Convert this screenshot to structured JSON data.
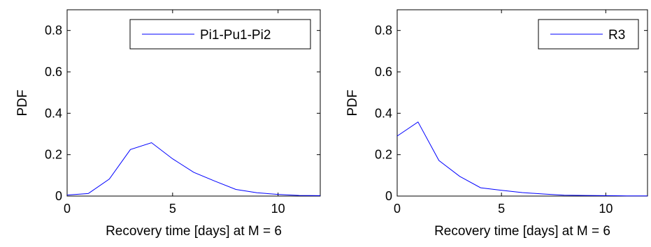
{
  "chart_data": [
    {
      "type": "line",
      "xlabel": "Recovery time [days] at M = 6",
      "ylabel": "PDF",
      "xlim": [
        0,
        12
      ],
      "ylim": [
        0,
        0.9
      ],
      "xticks": [
        0,
        5,
        10
      ],
      "yticks": [
        0,
        0.2,
        0.4,
        0.6,
        0.8
      ],
      "ytick_labels": [
        "0",
        "0.2",
        "0.4",
        "0.6",
        "0.8"
      ],
      "grid": false,
      "legend_position": "top-right",
      "series": [
        {
          "name": "Pi1-Pu1-Pi2",
          "color": "#0000ff",
          "x": [
            0,
            1,
            2,
            3,
            4,
            5,
            6,
            7,
            8,
            9,
            10,
            11,
            12
          ],
          "y": [
            0.005,
            0.012,
            0.082,
            0.225,
            0.258,
            0.18,
            0.115,
            0.072,
            0.032,
            0.016,
            0.008,
            0.003,
            0.002
          ]
        }
      ]
    },
    {
      "type": "line",
      "xlabel": "Recovery time [days] at M = 6",
      "ylabel": "PDF",
      "xlim": [
        0,
        12
      ],
      "ylim": [
        0,
        0.9
      ],
      "xticks": [
        0,
        5,
        10
      ],
      "yticks": [
        0,
        0.2,
        0.4,
        0.6,
        0.8
      ],
      "ytick_labels": [
        "0",
        "0.2",
        "0.4",
        "0.6",
        "0.8"
      ],
      "grid": false,
      "legend_position": "top-right",
      "series": [
        {
          "name": "R3",
          "color": "#0000ff",
          "x": [
            0,
            1,
            2,
            3,
            4,
            5,
            6,
            7,
            8,
            9,
            10,
            11,
            12
          ],
          "y": [
            0.29,
            0.358,
            0.172,
            0.095,
            0.04,
            0.028,
            0.017,
            0.01,
            0.004,
            0.003,
            0.002,
            0.001,
            0.001
          ]
        }
      ]
    }
  ]
}
